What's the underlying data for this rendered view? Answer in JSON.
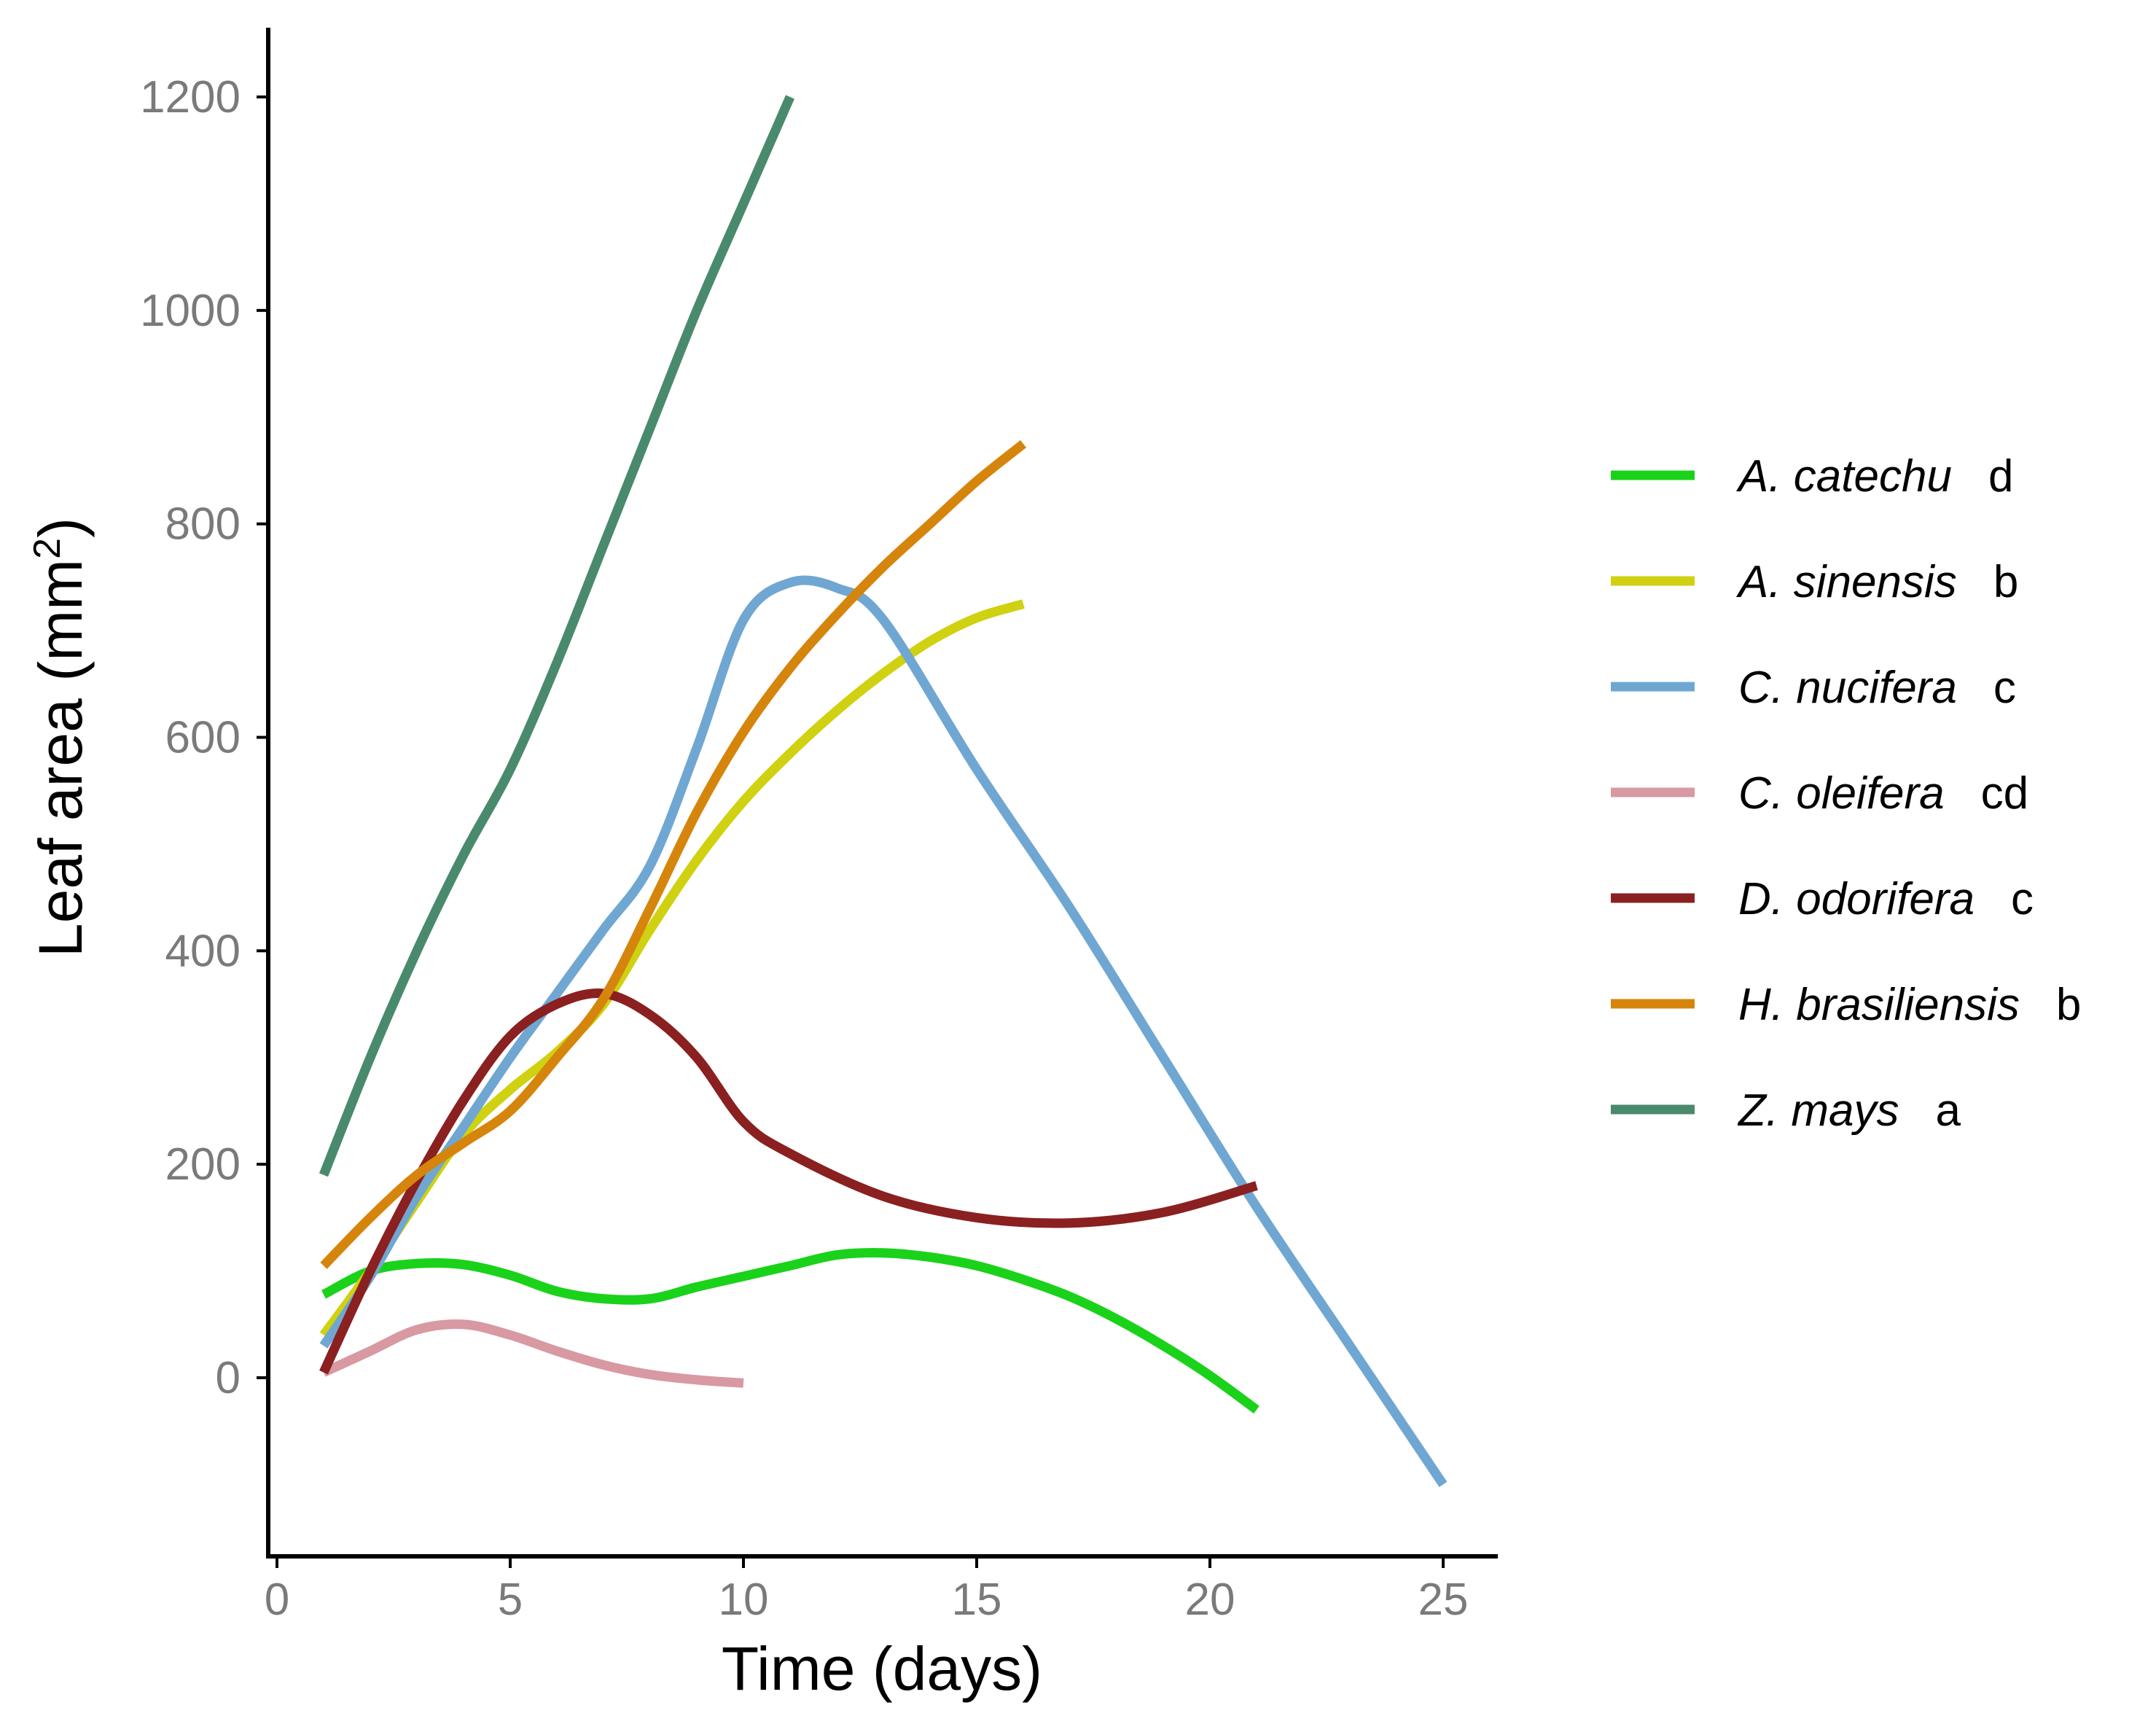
{
  "chart_data": {
    "type": "line",
    "title": "",
    "xlabel": "Time (days)",
    "ylabel": "Leaf area (mm",
    "ylabel_superscript": "2",
    "ylabel_close": ")",
    "xlim": [
      0,
      26
    ],
    "ylim": [
      -165,
      1235
    ],
    "x_ticks": [
      0,
      5,
      10,
      15,
      20,
      25
    ],
    "y_ticks": [
      0,
      200,
      400,
      600,
      800,
      1000,
      1200
    ],
    "grid": false,
    "legend_position": "right",
    "series": [
      {
        "name": "A. catechu",
        "group": "d",
        "color": "#1ad21a",
        "x": [
          1,
          2,
          3,
          4,
          5,
          6,
          7,
          8,
          9,
          10,
          11,
          12,
          13,
          14,
          15,
          16,
          17,
          18,
          19,
          20,
          21
        ],
        "y": [
          78,
          100,
          107,
          106,
          96,
          81,
          74,
          74,
          85,
          95,
          105,
          115,
          117,
          113,
          105,
          92,
          76,
          55,
          30,
          2,
          -30
        ]
      },
      {
        "name": "A. sinensis",
        "group": "b",
        "color": "#cfd111",
        "x": [
          1,
          2,
          3,
          4,
          5,
          6,
          7,
          8,
          9,
          10,
          11,
          12,
          13,
          14,
          15,
          16
        ],
        "y": [
          40,
          100,
          165,
          228,
          270,
          305,
          350,
          420,
          485,
          540,
          585,
          625,
          660,
          690,
          712,
          725
        ]
      },
      {
        "name": "C. nucifera",
        "group": "c",
        "color": "#6fa7d2",
        "x": [
          1,
          2,
          3,
          4,
          5,
          6,
          7,
          8,
          9,
          10,
          11,
          12,
          13,
          15,
          17,
          19,
          21,
          23,
          25
        ],
        "y": [
          30,
          95,
          170,
          235,
          300,
          360,
          420,
          480,
          590,
          710,
          745,
          740,
          710,
          570,
          440,
          300,
          160,
          30,
          -100
        ]
      },
      {
        "name": "C. oleifera",
        "group": "cd",
        "color": "#d899a3",
        "x": [
          1,
          2,
          3,
          4,
          5,
          6,
          7,
          8,
          9,
          10
        ],
        "y": [
          5,
          25,
          45,
          50,
          40,
          25,
          12,
          3,
          -2,
          -5
        ]
      },
      {
        "name": "D. odorifera",
        "group": "c",
        "color": "#8a2020",
        "x": [
          1,
          2,
          3,
          4,
          5,
          6,
          7,
          8,
          9,
          10,
          11,
          13,
          15,
          17,
          19,
          21
        ],
        "y": [
          5,
          100,
          185,
          260,
          320,
          350,
          360,
          340,
          300,
          240,
          210,
          170,
          150,
          145,
          155,
          180
        ]
      },
      {
        "name": "H. brasiliensis",
        "group": "b",
        "color": "#d6850c",
        "x": [
          1,
          2,
          3,
          4,
          5,
          6,
          7,
          8,
          9,
          10,
          11,
          12,
          13,
          14,
          15,
          16
        ],
        "y": [
          105,
          150,
          190,
          220,
          250,
          300,
          355,
          440,
          530,
          605,
          665,
          715,
          760,
          800,
          840,
          875
        ]
      },
      {
        "name": "Z. mays",
        "group": "a",
        "color": "#4a8a6c",
        "x": [
          1,
          2,
          3,
          4,
          5,
          6,
          7,
          8,
          9,
          10,
          11
        ],
        "y": [
          190,
          300,
          400,
          490,
          570,
          670,
          780,
          890,
          1000,
          1100,
          1200
        ]
      }
    ]
  }
}
